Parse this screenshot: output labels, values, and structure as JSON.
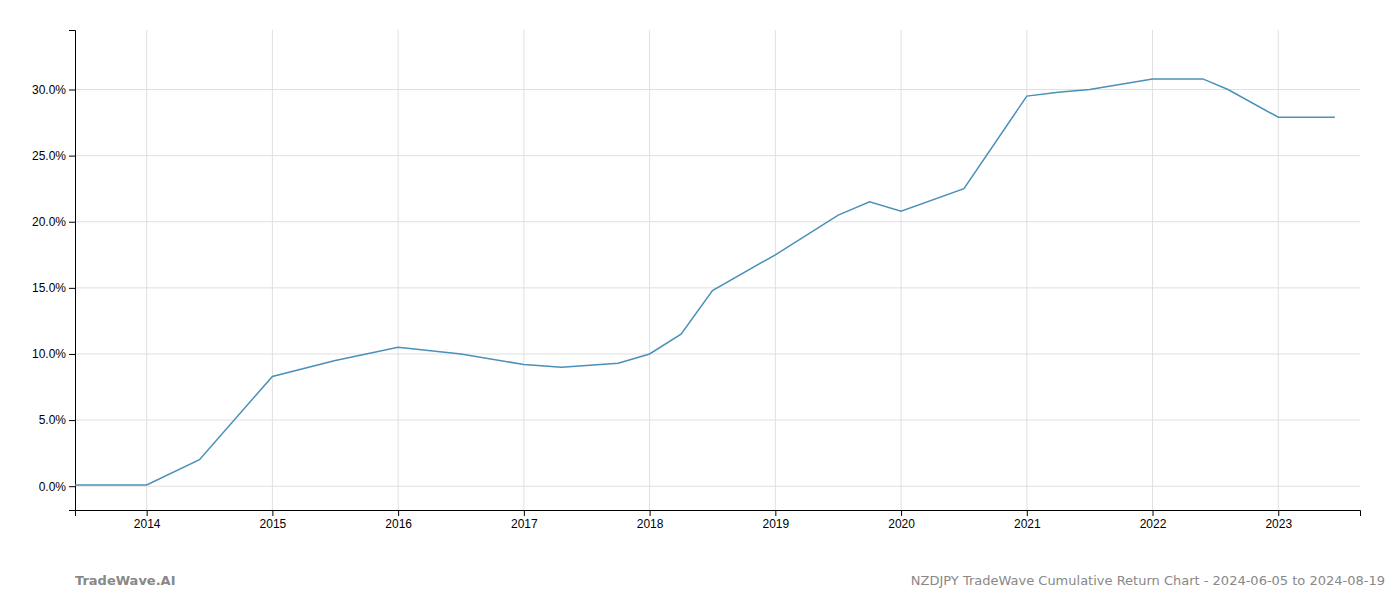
{
  "chart_data": {
    "type": "line",
    "x": [
      2013.43,
      2014.0,
      2014.42,
      2015.0,
      2015.5,
      2016.0,
      2016.5,
      2017.0,
      2017.3,
      2017.75,
      2018.0,
      2018.25,
      2018.5,
      2019.0,
      2019.5,
      2019.75,
      2020.0,
      2020.5,
      2021.0,
      2021.25,
      2021.5,
      2022.0,
      2022.4,
      2022.6,
      2023.0,
      2023.45
    ],
    "values": [
      0.001,
      0.001,
      0.02,
      0.083,
      0.095,
      0.105,
      0.1,
      0.092,
      0.09,
      0.093,
      0.1,
      0.115,
      0.148,
      0.175,
      0.205,
      0.215,
      0.208,
      0.225,
      0.295,
      0.298,
      0.3,
      0.308,
      0.308,
      0.3,
      0.279,
      0.279
    ],
    "color": "#4a90b8",
    "xlim": [
      2013.43,
      2023.65
    ],
    "ylim": [
      -0.018,
      0.345
    ],
    "xticks": [
      2014,
      2015,
      2016,
      2017,
      2018,
      2019,
      2020,
      2021,
      2022,
      2023
    ],
    "yticks": [
      {
        "value": 0.0,
        "label": "0.0%"
      },
      {
        "value": 0.05,
        "label": "5.0%"
      },
      {
        "value": 0.1,
        "label": "10.0%"
      },
      {
        "value": 0.15,
        "label": "15.0%"
      },
      {
        "value": 0.2,
        "label": "20.0%"
      },
      {
        "value": 0.25,
        "label": "25.0%"
      },
      {
        "value": 0.3,
        "label": "30.0%"
      }
    ],
    "grid": true,
    "annotations": [
      "TradeWave.AI",
      "NZDJPY TradeWave Cumulative Return Chart - 2024-06-05 to 2024-08-19"
    ]
  }
}
